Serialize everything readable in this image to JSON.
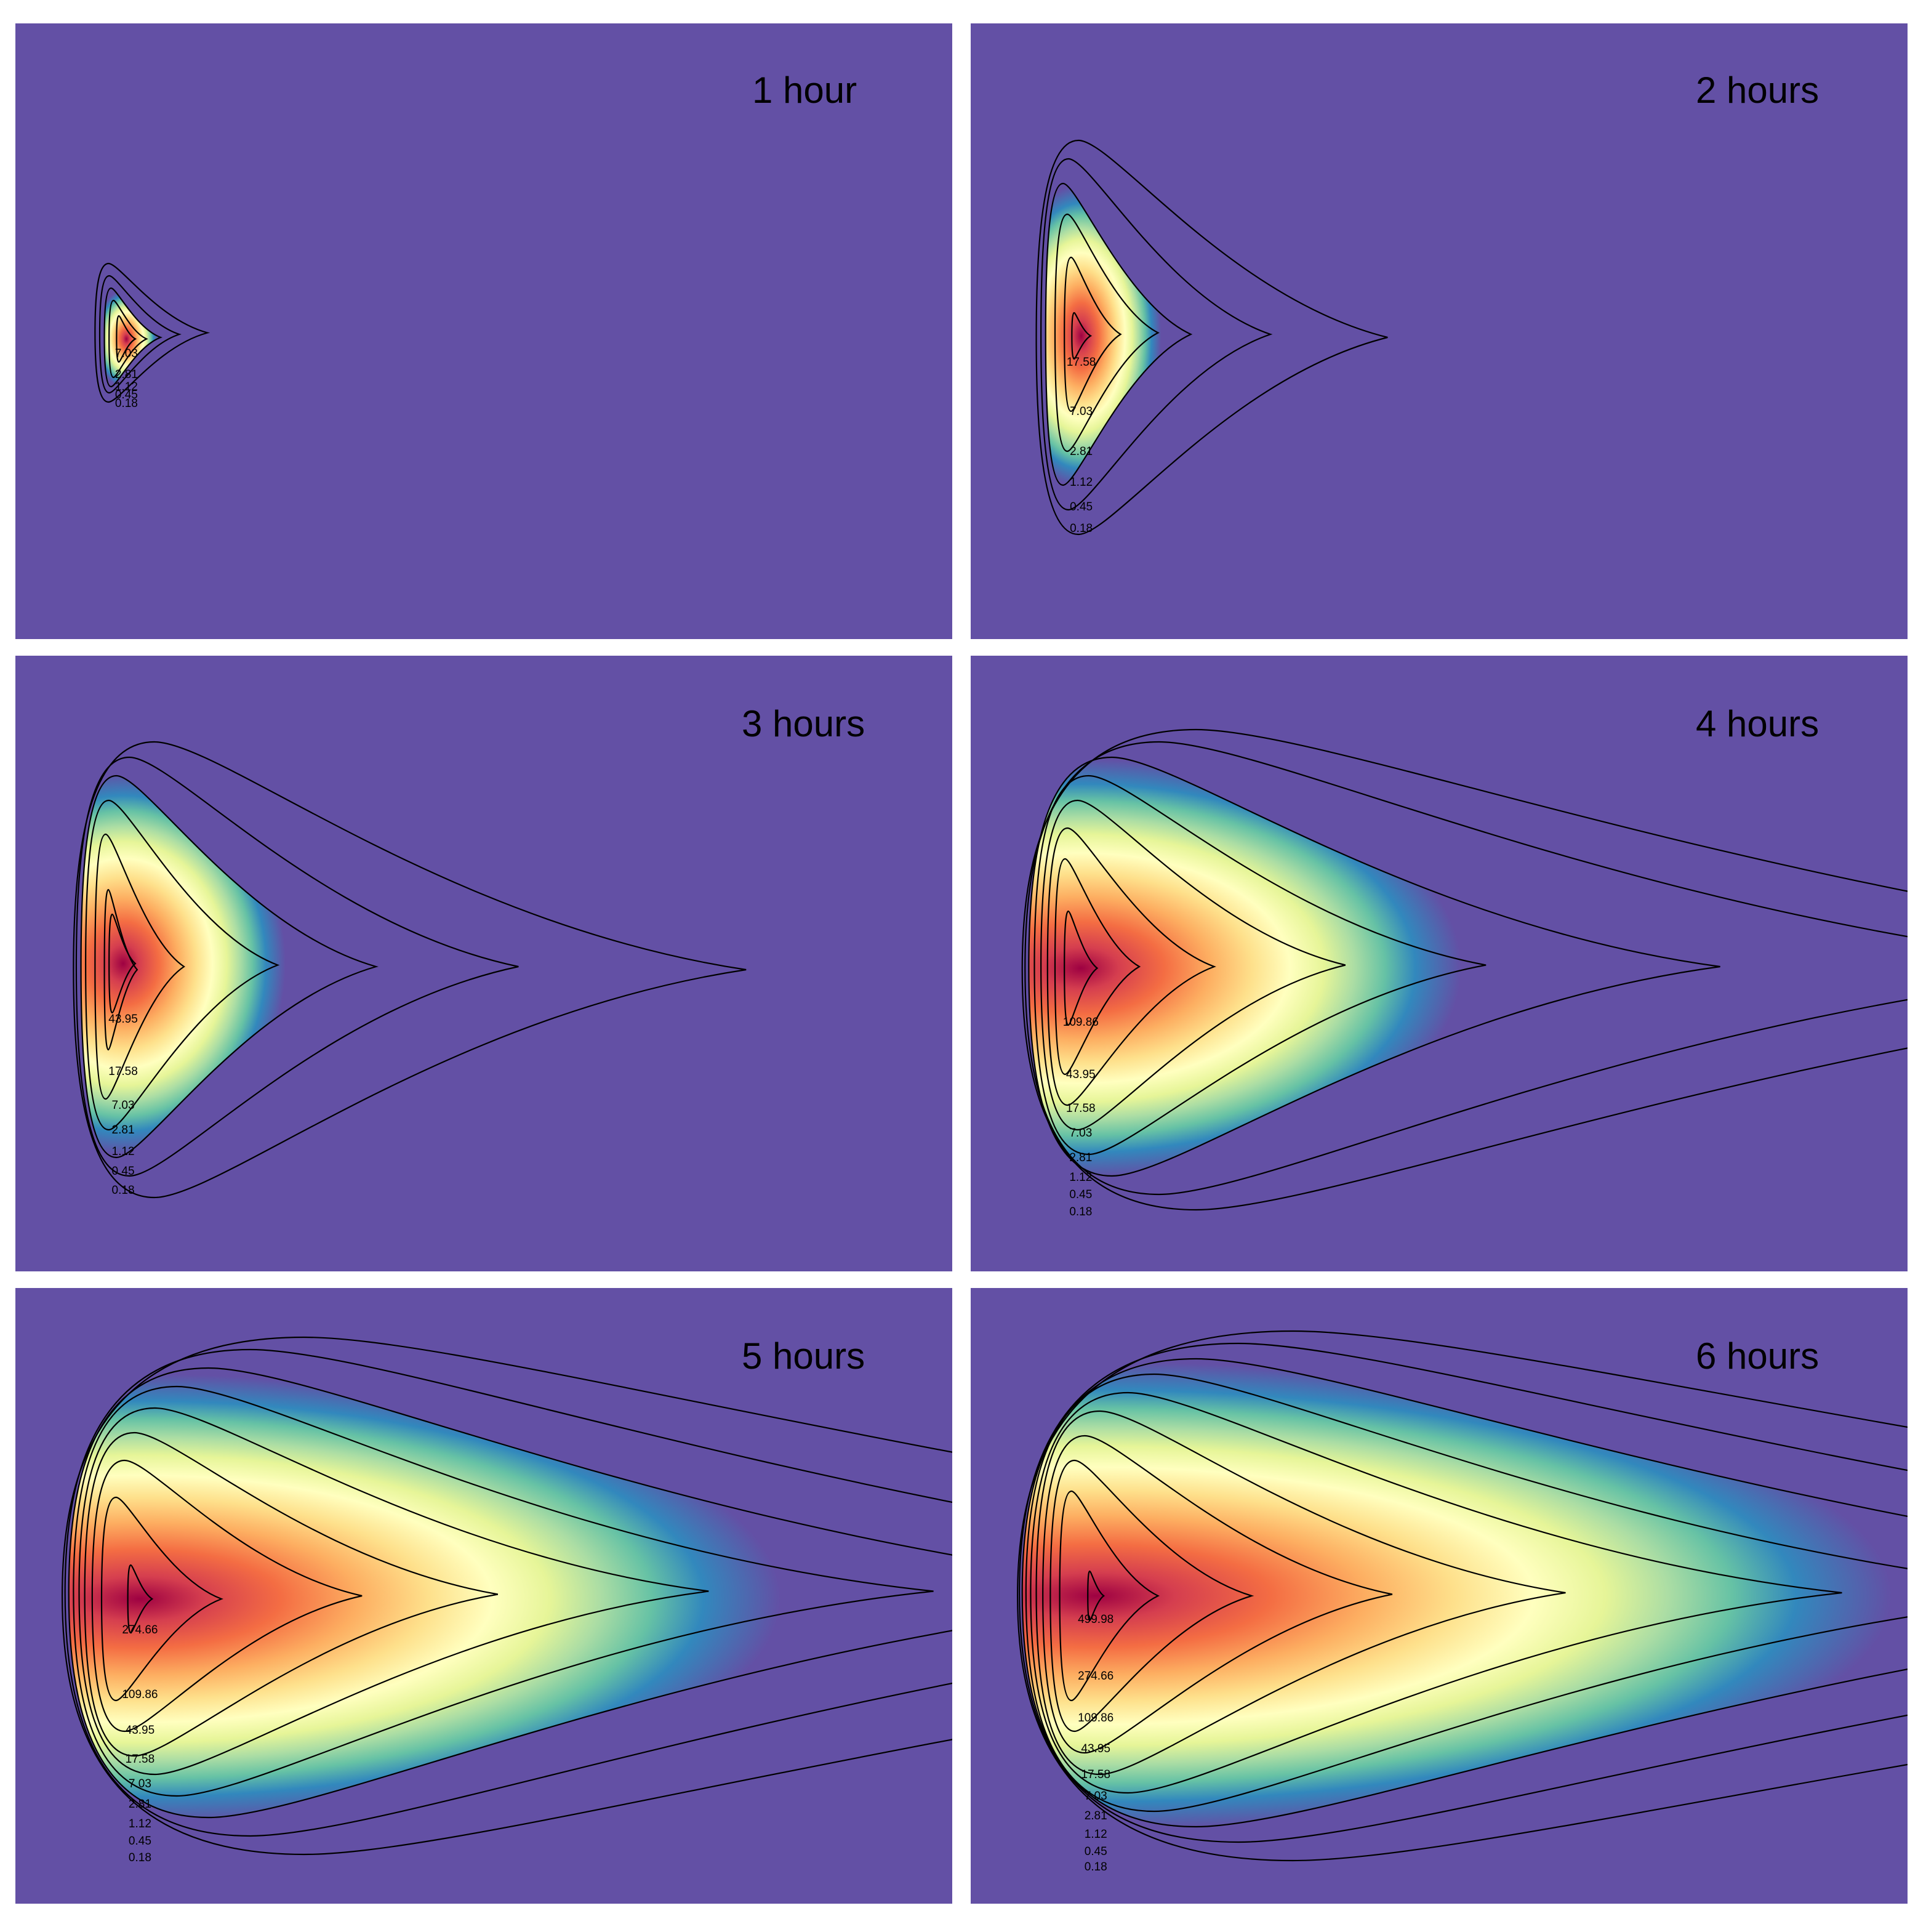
{
  "chart_data": [
    {
      "type": "heatmap",
      "title": "1 hour",
      "colors": {
        "background": "#6350a5",
        "contour_line": "#000000"
      },
      "contour_levels": [
        0.18,
        0.45,
        1.12,
        2.81,
        7.03
      ],
      "contour_labels": [
        "7.03",
        "2.81",
        "1.12",
        "0.45",
        "0.18"
      ],
      "contours": [
        {
          "level": 0.18,
          "left": 0.085,
          "right": 0.205,
          "top": 0.39,
          "bottom": 0.615
        },
        {
          "level": 0.45,
          "left": 0.09,
          "right": 0.175,
          "top": 0.41,
          "bottom": 0.6
        },
        {
          "level": 1.12,
          "left": 0.095,
          "right": 0.155,
          "top": 0.43,
          "bottom": 0.59
        },
        {
          "level": 2.81,
          "left": 0.1,
          "right": 0.14,
          "top": 0.45,
          "bottom": 0.575
        },
        {
          "level": 7.03,
          "left": 0.108,
          "right": 0.128,
          "top": 0.475,
          "bottom": 0.55
        }
      ],
      "core": {
        "left": 0.112,
        "right": 0.125,
        "top": 0.485,
        "bottom": 0.54
      },
      "label_y": [
        0.536,
        0.57,
        0.59,
        0.603,
        0.617
      ]
    },
    {
      "type": "heatmap",
      "title": "2 hours",
      "colors": {
        "background": "#6350a5",
        "contour_line": "#000000"
      },
      "contour_levels": [
        0.18,
        0.45,
        1.12,
        2.81,
        7.03,
        17.58
      ],
      "contour_labels": [
        "17.58",
        "7.03",
        "2.81",
        "1.12",
        "0.45",
        "0.18"
      ],
      "contours": [
        {
          "level": 0.18,
          "left": 0.07,
          "right": 0.445,
          "top": 0.19,
          "bottom": 0.83
        },
        {
          "level": 0.45,
          "left": 0.075,
          "right": 0.32,
          "top": 0.22,
          "bottom": 0.79
        },
        {
          "level": 1.12,
          "left": 0.08,
          "right": 0.235,
          "top": 0.26,
          "bottom": 0.75
        },
        {
          "level": 2.81,
          "left": 0.09,
          "right": 0.2,
          "top": 0.31,
          "bottom": 0.695
        },
        {
          "level": 7.03,
          "left": 0.1,
          "right": 0.16,
          "top": 0.38,
          "bottom": 0.63
        },
        {
          "level": 17.58,
          "left": 0.108,
          "right": 0.128,
          "top": 0.47,
          "bottom": 0.545
        }
      ],
      "core": {
        "left": 0.108,
        "right": 0.128,
        "top": 0.47,
        "bottom": 0.545
      },
      "label_y": [
        0.55,
        0.63,
        0.695,
        0.745,
        0.785,
        0.82
      ]
    },
    {
      "type": "heatmap",
      "title": "3 hours",
      "colors": {
        "background": "#6350a5",
        "contour_line": "#000000"
      },
      "contour_levels": [
        0.18,
        0.45,
        1.12,
        2.81,
        7.03,
        17.58,
        43.95
      ],
      "contour_labels": [
        "43.95",
        "17.58",
        "7.03",
        "2.81",
        "1.12",
        "0.45",
        "0.18"
      ],
      "contours": [
        {
          "level": 0.18,
          "left": 0.062,
          "right": 0.78,
          "top": 0.14,
          "bottom": 0.88
        },
        {
          "level": 0.45,
          "left": 0.065,
          "right": 0.537,
          "top": 0.165,
          "bottom": 0.845
        },
        {
          "level": 1.12,
          "left": 0.07,
          "right": 0.385,
          "top": 0.195,
          "bottom": 0.815
        },
        {
          "level": 2.81,
          "left": 0.075,
          "right": 0.28,
          "top": 0.235,
          "bottom": 0.77
        },
        {
          "level": 7.03,
          "left": 0.085,
          "right": 0.18,
          "top": 0.29,
          "bottom": 0.72
        },
        {
          "level": 17.58,
          "left": 0.095,
          "right": 0.13,
          "top": 0.38,
          "bottom": 0.64
        },
        {
          "level": 43.95,
          "left": 0.1,
          "right": 0.128,
          "top": 0.42,
          "bottom": 0.58
        }
      ],
      "core": {
        "left": 0.1,
        "right": 0.13,
        "top": 0.42,
        "bottom": 0.58
      },
      "label_y": [
        0.59,
        0.675,
        0.73,
        0.77,
        0.805,
        0.837,
        0.868
      ]
    },
    {
      "type": "heatmap",
      "title": "4 hours",
      "colors": {
        "background": "#6350a5",
        "contour_line": "#000000"
      },
      "contour_levels": [
        0.18,
        0.45,
        1.12,
        2.81,
        7.03,
        17.58,
        43.95,
        109.86
      ],
      "contour_labels": [
        "109.86",
        "43.95",
        "17.58",
        "7.03",
        "2.81",
        "1.12",
        "0.45",
        "0.18"
      ],
      "contours": [
        {
          "level": 0.18,
          "left": 0.055,
          "right": 1.6,
          "top": 0.12,
          "bottom": 0.9
        },
        {
          "level": 0.45,
          "left": 0.058,
          "right": 1.25,
          "top": 0.14,
          "bottom": 0.875
        },
        {
          "level": 1.12,
          "left": 0.062,
          "right": 0.8,
          "top": 0.165,
          "bottom": 0.845
        },
        {
          "level": 2.81,
          "left": 0.068,
          "right": 0.55,
          "top": 0.195,
          "bottom": 0.81
        },
        {
          "level": 7.03,
          "left": 0.075,
          "right": 0.4,
          "top": 0.235,
          "bottom": 0.77
        },
        {
          "level": 17.58,
          "left": 0.082,
          "right": 0.26,
          "top": 0.28,
          "bottom": 0.73
        },
        {
          "level": 43.95,
          "left": 0.09,
          "right": 0.18,
          "top": 0.33,
          "bottom": 0.68
        },
        {
          "level": 109.86,
          "left": 0.1,
          "right": 0.135,
          "top": 0.415,
          "bottom": 0.6
        }
      ],
      "core": {
        "left": 0.1,
        "right": 0.135,
        "top": 0.415,
        "bottom": 0.6
      },
      "label_y": [
        0.595,
        0.68,
        0.735,
        0.775,
        0.815,
        0.847,
        0.875,
        0.903
      ]
    },
    {
      "type": "heatmap",
      "title": "5 hours",
      "colors": {
        "background": "#6350a5",
        "contour_line": "#000000"
      },
      "contour_levels": [
        0.18,
        0.45,
        1.12,
        2.81,
        7.03,
        17.58,
        43.95,
        109.86,
        274.66
      ],
      "contour_labels": [
        "274.66",
        "109.86",
        "43.95",
        "17.58",
        "7.03",
        "2.81",
        "1.12",
        "0.45",
        "0.18"
      ],
      "contours": [
        {
          "level": 0.18,
          "left": 0.05,
          "right": 2.2,
          "top": 0.08,
          "bottom": 0.92
        },
        {
          "level": 0.45,
          "left": 0.053,
          "right": 1.7,
          "top": 0.1,
          "bottom": 0.89
        },
        {
          "level": 1.12,
          "left": 0.057,
          "right": 1.3,
          "top": 0.13,
          "bottom": 0.86
        },
        {
          "level": 2.81,
          "left": 0.062,
          "right": 0.98,
          "top": 0.16,
          "bottom": 0.825
        },
        {
          "level": 7.03,
          "left": 0.068,
          "right": 0.74,
          "top": 0.195,
          "bottom": 0.79
        },
        {
          "level": 17.58,
          "left": 0.074,
          "right": 0.515,
          "top": 0.235,
          "bottom": 0.76
        },
        {
          "level": 43.95,
          "left": 0.082,
          "right": 0.37,
          "top": 0.28,
          "bottom": 0.72
        },
        {
          "level": 109.86,
          "left": 0.092,
          "right": 0.22,
          "top": 0.34,
          "bottom": 0.67
        },
        {
          "level": 274.66,
          "left": 0.12,
          "right": 0.146,
          "top": 0.45,
          "bottom": 0.56
        }
      ],
      "core": {
        "left": 0.12,
        "right": 0.146,
        "top": 0.45,
        "bottom": 0.56
      },
      "label_y": [
        0.555,
        0.66,
        0.718,
        0.765,
        0.805,
        0.838,
        0.87,
        0.898,
        0.925
      ]
    },
    {
      "type": "heatmap",
      "title": "6 hours",
      "colors": {
        "background": "#6350a5",
        "contour_line": "#000000"
      },
      "contour_levels": [
        0.18,
        0.45,
        1.12,
        2.81,
        7.03,
        17.58,
        43.95,
        109.86,
        274.66,
        499.98
      ],
      "contour_labels": [
        "499.98",
        "274.66",
        "109.86",
        "43.95",
        "17.58",
        "7.03",
        "2.81",
        "1.12",
        "0.45",
        "0.18"
      ],
      "contours": [
        {
          "level": 0.18,
          "left": 0.05,
          "right": 2.5,
          "top": 0.07,
          "bottom": 0.93
        },
        {
          "level": 0.45,
          "left": 0.052,
          "right": 2.0,
          "top": 0.09,
          "bottom": 0.9
        },
        {
          "level": 1.12,
          "left": 0.055,
          "right": 1.6,
          "top": 0.115,
          "bottom": 0.875
        },
        {
          "level": 2.81,
          "left": 0.059,
          "right": 1.2,
          "top": 0.14,
          "bottom": 0.85
        },
        {
          "level": 7.03,
          "left": 0.064,
          "right": 0.93,
          "top": 0.17,
          "bottom": 0.82
        },
        {
          "level": 17.58,
          "left": 0.07,
          "right": 0.635,
          "top": 0.2,
          "bottom": 0.79
        },
        {
          "level": 43.95,
          "left": 0.077,
          "right": 0.45,
          "top": 0.24,
          "bottom": 0.755
        },
        {
          "level": 109.86,
          "left": 0.085,
          "right": 0.3,
          "top": 0.28,
          "bottom": 0.72
        },
        {
          "level": 274.66,
          "left": 0.095,
          "right": 0.2,
          "top": 0.33,
          "bottom": 0.67
        },
        {
          "level": 499.98,
          "left": 0.125,
          "right": 0.142,
          "top": 0.46,
          "bottom": 0.54
        }
      ],
      "core": {
        "left": 0.125,
        "right": 0.142,
        "top": 0.46,
        "bottom": 0.54
      },
      "label_y": [
        0.538,
        0.63,
        0.698,
        0.748,
        0.79,
        0.825,
        0.857,
        0.887,
        0.915,
        0.94
      ]
    }
  ]
}
